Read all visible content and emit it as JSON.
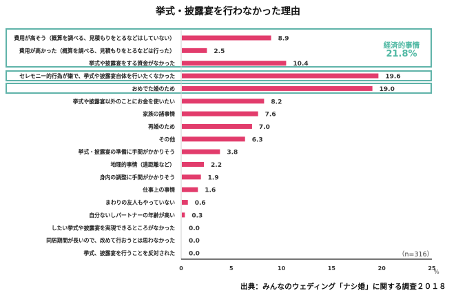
{
  "chart_data": {
    "type": "bar",
    "orientation": "horizontal",
    "title": "挙式・披露宴を行わなかった理由",
    "xlabel": "",
    "unit": "%",
    "xlim": [
      0,
      25
    ],
    "xticks": [
      0,
      5,
      10,
      15,
      20,
      25
    ],
    "grid": false,
    "categories": [
      "費用が高そう（概算を調べる、見積もりをとるなどはしていない）",
      "費用が高かった（概算を調べる、見積もりをとるなどは行った）",
      "挙式や披露宴をする資金がなかった",
      "セレモニー的行為が嫌で、挙式や披露宴自体を行いたくなかった",
      "おめでた婚のため",
      "挙式や披露宴以外のことにお金を使いたい",
      "家族の諸事情",
      "再婚のため",
      "その他",
      "挙式・披露宴の準備に手間がかかりそう",
      "地理的事情（遠距離など）",
      "身内の調整に手間がかかりそう",
      "仕事上の事情",
      "まわりの友人もやっていない",
      "自分ないしパートナーの年齢が高い",
      "したい挙式や披露宴を実現できるところがなかった",
      "同居期間が長いので、改めて行おうとは思わなかった",
      "挙式、披露宴を行うことを反対された"
    ],
    "values": [
      8.9,
      2.5,
      10.4,
      19.6,
      19.0,
      8.2,
      7.6,
      7.0,
      6.3,
      3.8,
      2.2,
      1.9,
      1.6,
      0.6,
      0.3,
      0.0,
      0.0,
      0.0
    ],
    "value_labels": [
      "8.9",
      "2.5",
      "10.4",
      "19.6",
      "19.0",
      "8.2",
      "7.6",
      "7.0",
      "6.3",
      "3.8",
      "2.2",
      "1.9",
      "1.6",
      "0.6",
      "0.3",
      "0.0",
      "0.0",
      "0.0"
    ],
    "bar_color": "#e23c6c",
    "highlight_color": "#5fb3a9",
    "annotations": [
      {
        "group": "経済的事情",
        "value": "21.8%",
        "categories_covered": [
          0,
          1,
          2
        ]
      }
    ],
    "sample_note": "（n=316）",
    "source": "出典：みんなのウェディング「ナシ婚」に関する調査２０１８"
  },
  "annotation": {
    "label": "経済的事情",
    "value": "21.8%"
  }
}
